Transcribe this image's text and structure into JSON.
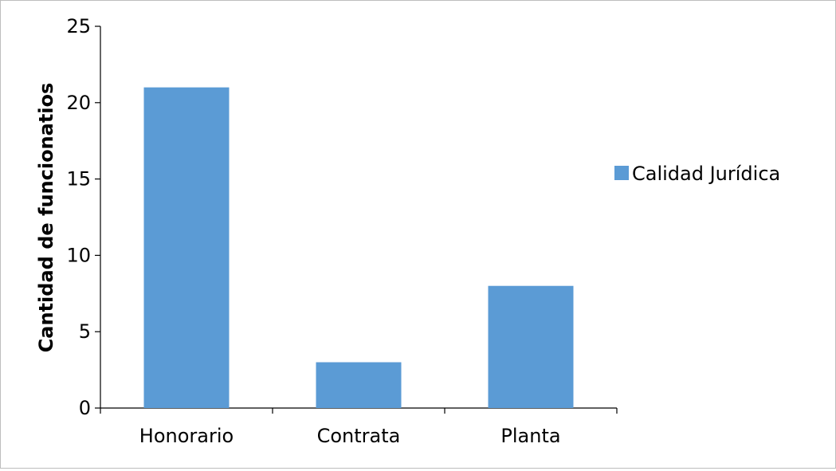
{
  "chart_data": {
    "type": "bar",
    "categories": [
      "Honorario",
      "Contrata",
      "Planta"
    ],
    "series": [
      {
        "name": "Calidad Jurídica",
        "values": [
          21,
          3,
          8
        ]
      }
    ],
    "title": "",
    "xlabel": "",
    "ylabel": "Cantidad de funcionatios",
    "ylim": [
      0,
      25
    ],
    "yticks": [
      "0",
      "5",
      "10",
      "15",
      "20",
      "25"
    ],
    "grid": false,
    "legend_position": "right",
    "colors": {
      "bar": "#5b9bd5",
      "axis": "#000000"
    }
  }
}
